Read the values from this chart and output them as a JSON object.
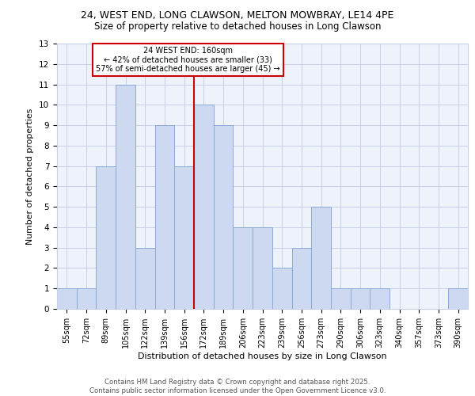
{
  "title1": "24, WEST END, LONG CLAWSON, MELTON MOWBRAY, LE14 4PE",
  "title2": "Size of property relative to detached houses in Long Clawson",
  "xlabel": "Distribution of detached houses by size in Long Clawson",
  "ylabel": "Number of detached properties",
  "categories": [
    "55sqm",
    "72sqm",
    "89sqm",
    "105sqm",
    "122sqm",
    "139sqm",
    "156sqm",
    "172sqm",
    "189sqm",
    "206sqm",
    "223sqm",
    "239sqm",
    "256sqm",
    "273sqm",
    "290sqm",
    "306sqm",
    "323sqm",
    "340sqm",
    "357sqm",
    "373sqm",
    "390sqm"
  ],
  "values": [
    1,
    1,
    7,
    11,
    3,
    9,
    7,
    10,
    9,
    4,
    4,
    2,
    3,
    5,
    1,
    1,
    1,
    0,
    0,
    0,
    1
  ],
  "bar_color": "#ccd9f0",
  "bar_edge_color": "#8aaad4",
  "ref_line_x": 6.5,
  "ref_line_label": "24 WEST END: 160sqm",
  "annotation_line1": "← 42% of detached houses are smaller (33)",
  "annotation_line2": "57% of semi-detached houses are larger (45) →",
  "ref_line_color": "#cc0000",
  "box_edge_color": "#cc0000",
  "ylim": [
    0,
    13
  ],
  "yticks": [
    0,
    1,
    2,
    3,
    4,
    5,
    6,
    7,
    8,
    9,
    10,
    11,
    12,
    13
  ],
  "footer": "Contains HM Land Registry data © Crown copyright and database right 2025.\nContains public sector information licensed under the Open Government Licence v3.0.",
  "bg_color": "#eef2fb",
  "grid_color": "#c8d0e8"
}
